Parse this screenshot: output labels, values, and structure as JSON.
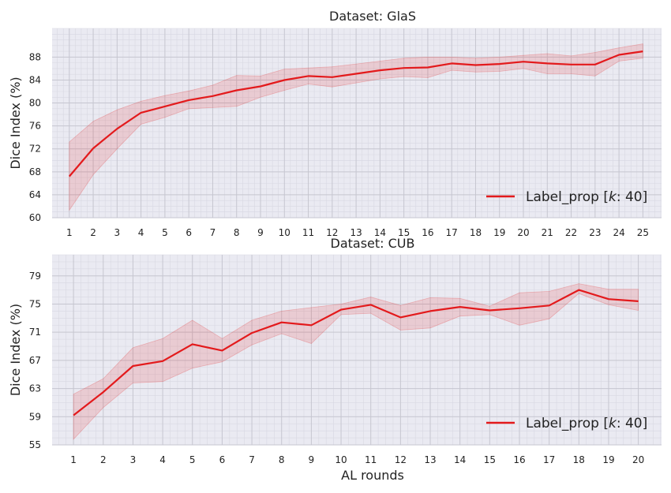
{
  "chart_data": [
    {
      "type": "line",
      "title": "Dataset: GlaS",
      "xlabel": "",
      "ylabel": "Dice Index (%)",
      "ylim": [
        60,
        93
      ],
      "yticks": [
        60,
        64,
        68,
        72,
        76,
        80,
        84,
        88
      ],
      "x": [
        1,
        2,
        3,
        4,
        5,
        6,
        7,
        8,
        9,
        10,
        11,
        12,
        13,
        14,
        15,
        16,
        17,
        18,
        19,
        20,
        21,
        22,
        23,
        24,
        25
      ],
      "grid": true,
      "legend_position": "lower-right",
      "series": [
        {
          "name": "Label_prop [k: 40]",
          "color": "#e31a1c",
          "values": [
            67.2,
            72.1,
            75.5,
            78.3,
            79.4,
            80.5,
            81.2,
            82.2,
            82.9,
            84.0,
            84.7,
            84.5,
            85.1,
            85.7,
            86.1,
            86.2,
            86.9,
            86.6,
            86.8,
            87.2,
            86.9,
            86.7,
            86.7,
            88.4,
            89.0
          ],
          "lower": [
            61.3,
            67.5,
            72.0,
            76.3,
            77.5,
            79.0,
            79.2,
            79.4,
            81.0,
            82.2,
            83.3,
            82.8,
            83.5,
            84.2,
            84.6,
            84.4,
            85.7,
            85.4,
            85.5,
            86.0,
            85.1,
            85.1,
            84.7,
            87.3,
            87.8
          ],
          "upper": [
            73.2,
            76.8,
            78.8,
            80.3,
            81.3,
            82.1,
            83.1,
            84.8,
            84.7,
            85.9,
            86.1,
            86.3,
            86.8,
            87.3,
            87.8,
            88.0,
            88.0,
            87.8,
            88.0,
            88.3,
            88.6,
            88.2,
            88.8,
            89.6,
            90.3
          ]
        }
      ]
    },
    {
      "type": "line",
      "title": "Dataset: CUB",
      "xlabel": "AL rounds",
      "ylabel": "Dice Index (%)",
      "ylim": [
        55,
        82
      ],
      "yticks": [
        55,
        59,
        63,
        67,
        71,
        75,
        79
      ],
      "x": [
        1,
        2,
        3,
        4,
        5,
        6,
        7,
        8,
        9,
        10,
        11,
        12,
        13,
        14,
        15,
        16,
        17,
        18,
        19,
        20
      ],
      "grid": true,
      "legend_position": "lower-right",
      "series": [
        {
          "name": "Label_prop [k: 40]",
          "color": "#e31a1c",
          "values": [
            59.2,
            62.5,
            66.2,
            66.9,
            69.3,
            68.4,
            70.9,
            72.4,
            72.0,
            74.2,
            74.9,
            73.1,
            74.0,
            74.6,
            74.1,
            74.4,
            74.8,
            77.0,
            75.7,
            75.4
          ],
          "lower": [
            55.8,
            60.3,
            63.8,
            64.0,
            65.9,
            66.8,
            69.2,
            70.8,
            69.4,
            73.5,
            73.7,
            71.3,
            71.6,
            73.3,
            73.5,
            72.0,
            72.9,
            76.5,
            74.9,
            74.1
          ],
          "upper": [
            62.2,
            64.4,
            68.8,
            70.1,
            72.7,
            70.1,
            72.7,
            74.0,
            74.5,
            75.0,
            76.0,
            74.8,
            75.9,
            75.8,
            74.7,
            76.6,
            76.8,
            77.9,
            77.1,
            77.1
          ]
        }
      ]
    }
  ]
}
